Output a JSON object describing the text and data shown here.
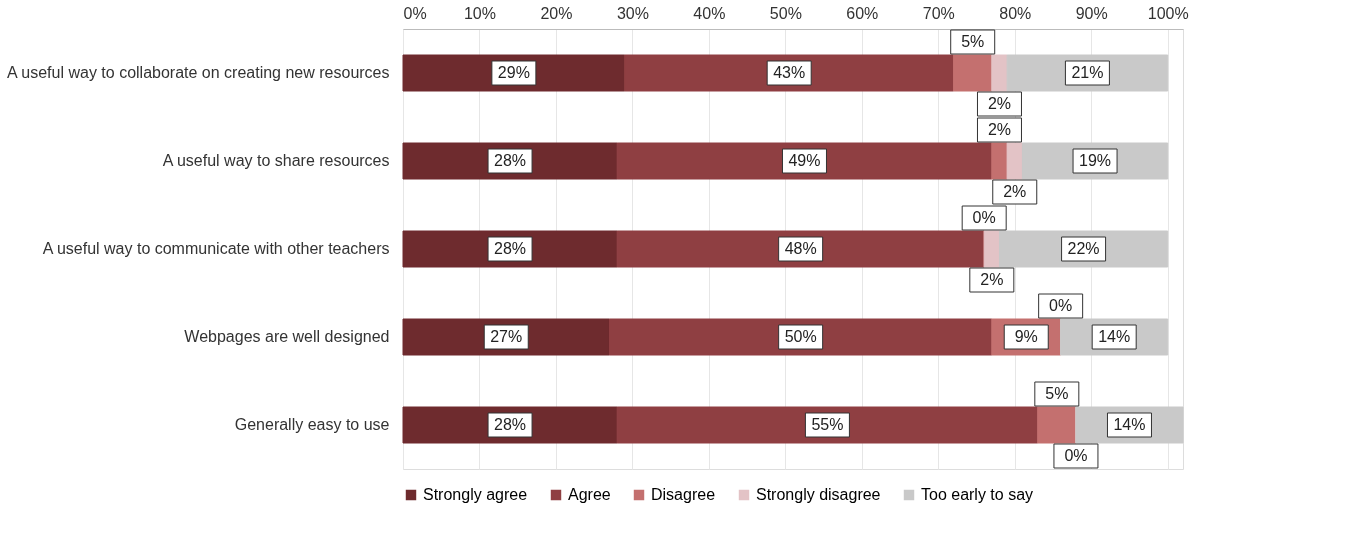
{
  "chart_data": {
    "type": "bar",
    "orientation": "horizontal",
    "stacked": true,
    "grid": "x",
    "legend": "bottom",
    "categories": [
      "A useful way to collaborate on creating new resources",
      "A useful way to share resources",
      "A useful way to communicate with other teachers",
      "Webpages are well designed",
      "Generally easy to use"
    ],
    "xlim": [
      0,
      102
    ],
    "xticks": [
      {
        "value": 0,
        "label": "0%"
      },
      {
        "value": 10,
        "label": "10%"
      },
      {
        "value": 20,
        "label": "20%"
      },
      {
        "value": 30,
        "label": "30%"
      },
      {
        "value": 40,
        "label": "40%"
      },
      {
        "value": 50,
        "label": "50%"
      },
      {
        "value": 60,
        "label": "60%"
      },
      {
        "value": 70,
        "label": "70%"
      },
      {
        "value": 80,
        "label": "80%"
      },
      {
        "value": 90,
        "label": "90%"
      },
      {
        "value": 100,
        "label": "100%"
      }
    ],
    "series": [
      {
        "name": "Strongly agree",
        "color": "#6e2b2e",
        "values": [
          29,
          28,
          28,
          27,
          28
        ],
        "value_labels": [
          "29%",
          "28%",
          "28%",
          "27%",
          "28%"
        ]
      },
      {
        "name": "Agree",
        "color": "#8f3f42",
        "values": [
          43,
          49,
          48,
          50,
          55
        ],
        "value_labels": [
          "43%",
          "49%",
          "48%",
          "50%",
          "55%"
        ]
      },
      {
        "name": "Disagree",
        "color": "#c4706f",
        "values": [
          5,
          2,
          0,
          9,
          5
        ],
        "value_labels": [
          "5%",
          "2%",
          "0%",
          "9%",
          "5%"
        ]
      },
      {
        "name": "Strongly disagree",
        "color": "#e3c3c6",
        "values": [
          2,
          2,
          2,
          0,
          0
        ],
        "value_labels": [
          "2%",
          "2%",
          "2%",
          "0%",
          "0%"
        ]
      },
      {
        "name": "Too early to say",
        "color": "#c9c9c9",
        "values": [
          21,
          19,
          22,
          14,
          14
        ],
        "value_labels": [
          "21%",
          "19%",
          "22%",
          "14%",
          "14%"
        ]
      }
    ]
  }
}
